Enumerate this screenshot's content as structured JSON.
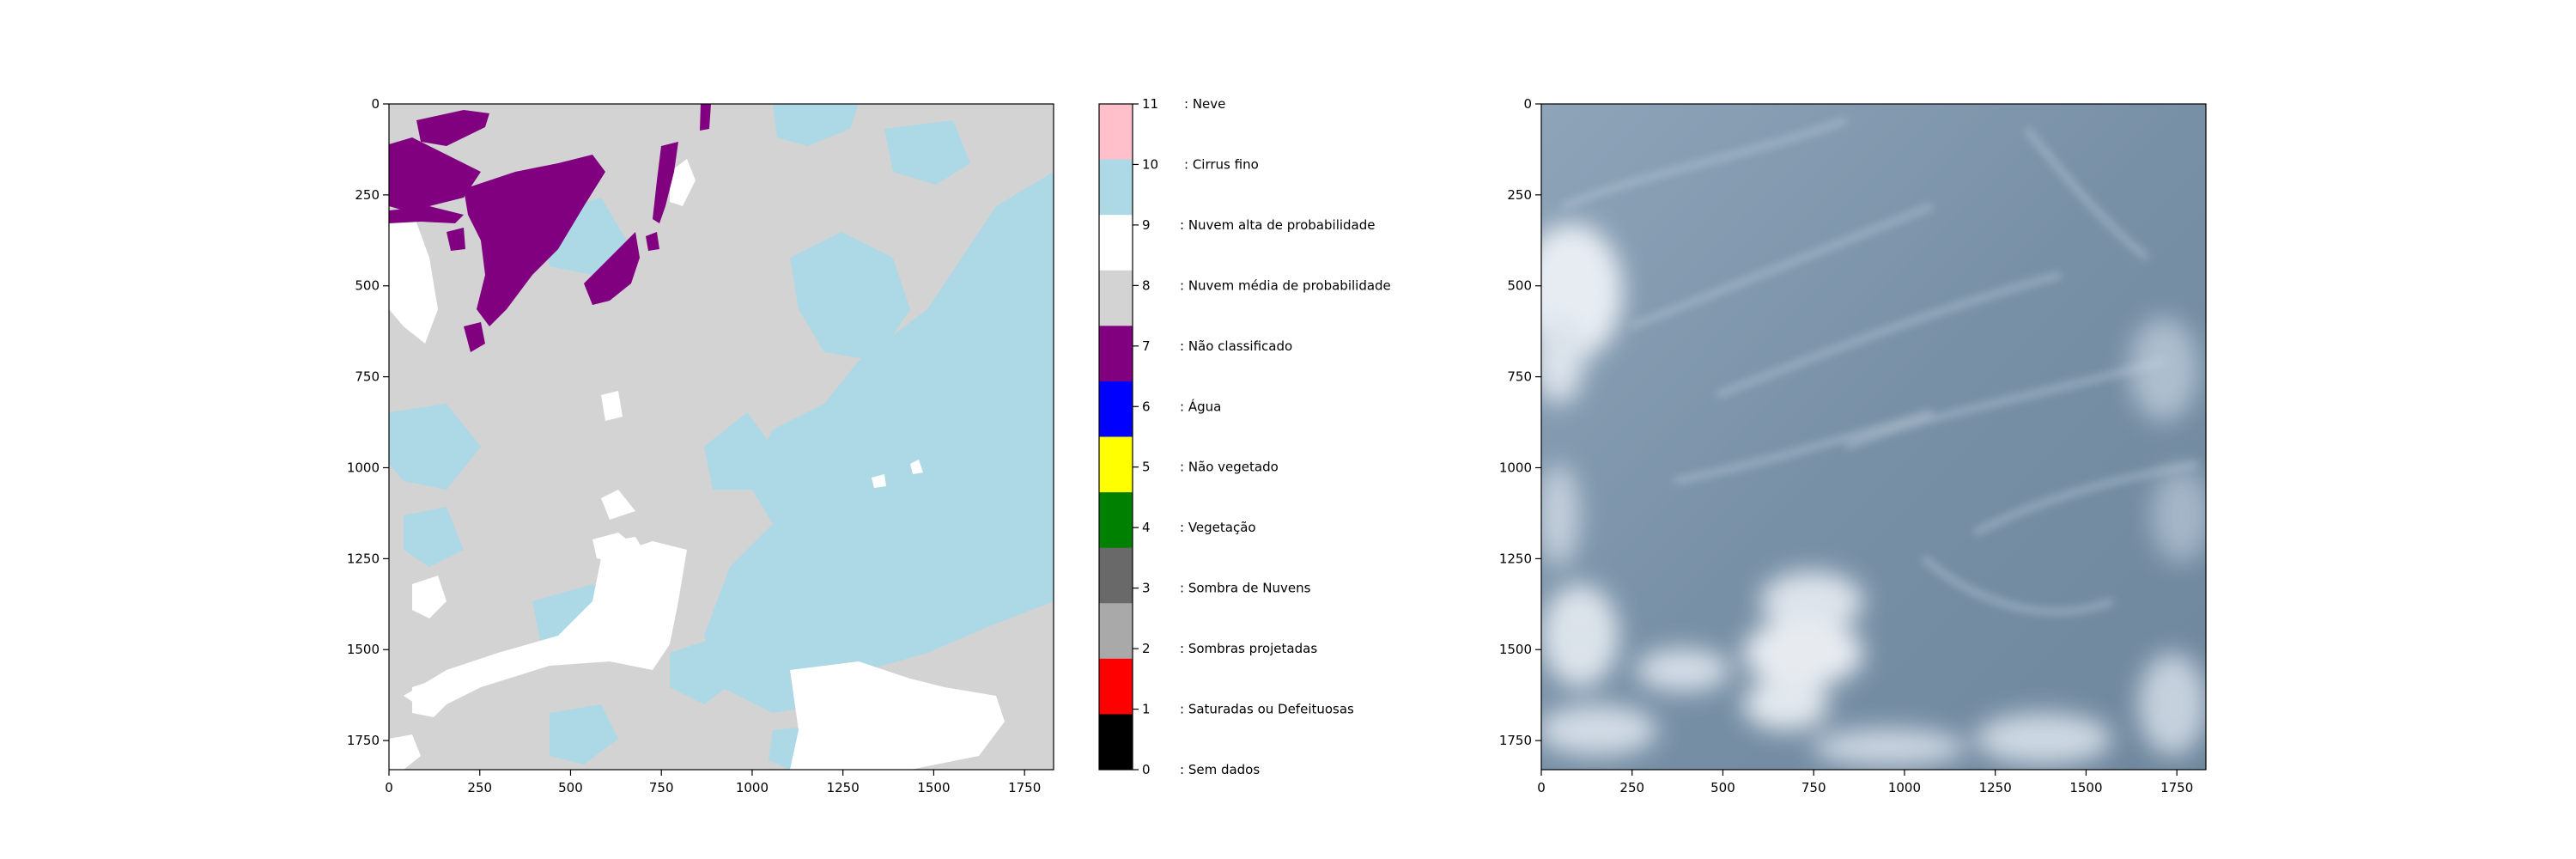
{
  "chart_data": [
    {
      "type": "heatmap",
      "x_ticks": [
        "0",
        "250",
        "500",
        "750",
        "1000",
        "1250",
        "1500",
        "1750"
      ],
      "y_ticks": [
        "0",
        "250",
        "500",
        "750",
        "1000",
        "1250",
        "1500",
        "1750"
      ],
      "xlim": [
        0,
        1830
      ],
      "ylim": [
        1830,
        0
      ],
      "grid": false,
      "colorbar": {
        "placement": "right",
        "entries": [
          {
            "value": "11",
            "label": ": Neve",
            "color": "#ffc0cb"
          },
          {
            "value": "10",
            "label": ": Cirrus fino",
            "color": "#add8e6"
          },
          {
            "value": "9",
            "label": ": Nuvem alta de probabilidade",
            "color": "#ffffff"
          },
          {
            "value": "8",
            "label": ": Nuvem média de probabilidade",
            "color": "#d3d3d3"
          },
          {
            "value": "7",
            "label": ": Não classificado",
            "color": "#800080"
          },
          {
            "value": "6",
            "label": ": Água",
            "color": "#0000ff"
          },
          {
            "value": "5",
            "label": ": Não vegetado",
            "color": "#ffff00"
          },
          {
            "value": "4",
            "label": ": Vegetação",
            "color": "#008000"
          },
          {
            "value": "3",
            "label": ": Sombra de Nuvens",
            "color": "#696969"
          },
          {
            "value": "2",
            "label": ": Sombras projetadas",
            "color": "#a9a9a9"
          },
          {
            "value": "1",
            "label": ": Saturadas ou Defeituosas",
            "color": "#ff0000"
          },
          {
            "value": "0",
            "label": ": Sem dados",
            "color": "#000000"
          }
        ]
      }
    },
    {
      "type": "image",
      "x_ticks": [
        "0",
        "250",
        "500",
        "750",
        "1000",
        "1250",
        "1500",
        "1750"
      ],
      "y_ticks": [
        "0",
        "250",
        "500",
        "750",
        "1000",
        "1250",
        "1500",
        "1750"
      ],
      "xlim": [
        0,
        1830
      ],
      "ylim": [
        1830,
        0
      ],
      "grid": false
    }
  ]
}
